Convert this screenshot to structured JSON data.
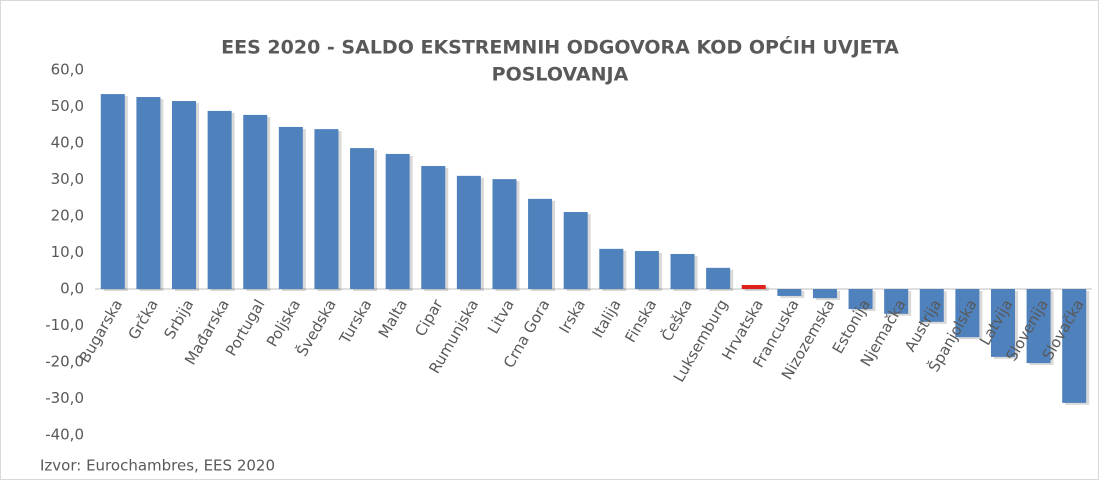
{
  "chart_data": {
    "type": "bar",
    "title": [
      "EES 2020 - SALDO EKSTREMNIH ODGOVORA KOD OPĆIH UVJETA",
      "POSLOVANJA"
    ],
    "source": "Izvor: Eurochambres, EES 2020",
    "categories": [
      "Bugarska",
      "Grčka",
      "Srbija",
      "Mađarska",
      "Portugal",
      "Poljska",
      "Švedska",
      "Turska",
      "Malta",
      "Cipar",
      "Rumunjska",
      "Litva",
      "Crna Gora",
      "Irska",
      "Italija",
      "Finska",
      "Češka",
      "Luksemburg",
      "Hrvatska",
      "Francuska",
      "Nizozemska",
      "Estonija",
      "Njemačka",
      "Austrija",
      "Španjolska",
      "Latvija",
      "Slovenija",
      "Slovačka"
    ],
    "values": [
      53.4,
      52.6,
      51.5,
      48.8,
      47.7,
      44.4,
      43.8,
      38.6,
      37.0,
      33.7,
      31.0,
      30.1,
      24.7,
      21.1,
      11.0,
      10.4,
      9.6,
      5.8,
      1.1,
      -1.9,
      -2.5,
      -5.5,
      -6.8,
      -9.0,
      -13.2,
      -18.6,
      -20.3,
      -31.2
    ],
    "colors": [
      "#4f81bd",
      "#4f81bd",
      "#4f81bd",
      "#4f81bd",
      "#4f81bd",
      "#4f81bd",
      "#4f81bd",
      "#4f81bd",
      "#4f81bd",
      "#4f81bd",
      "#4f81bd",
      "#4f81bd",
      "#4f81bd",
      "#4f81bd",
      "#4f81bd",
      "#4f81bd",
      "#4f81bd",
      "#4f81bd",
      "#e0201b",
      "#4f81bd",
      "#4f81bd",
      "#4f81bd",
      "#4f81bd",
      "#4f81bd",
      "#4f81bd",
      "#4f81bd",
      "#4f81bd",
      "#4f81bd"
    ],
    "ylim": [
      -40,
      60
    ],
    "yticks": [
      {
        "value": -40,
        "label": "-40,0"
      },
      {
        "value": -30,
        "label": "-30,0"
      },
      {
        "value": -20,
        "label": "-20,0"
      },
      {
        "value": -10,
        "label": "-10,0"
      },
      {
        "value": 0,
        "label": "0,0"
      },
      {
        "value": 10,
        "label": "10,0"
      },
      {
        "value": 20,
        "label": "20,0"
      },
      {
        "value": 30,
        "label": "30,0"
      },
      {
        "value": 40,
        "label": "40,0"
      },
      {
        "value": 50,
        "label": "50,0"
      },
      {
        "value": 60,
        "label": "60,0"
      }
    ],
    "grid": false
  }
}
